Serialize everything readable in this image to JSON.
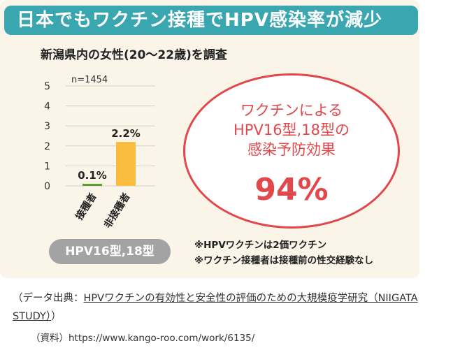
{
  "banner": {
    "title": "日本でもワクチン接種でHPV感染率が減少"
  },
  "subtitle": "新潟県内の女性(20〜22歳)を調査",
  "chart_data": {
    "type": "bar",
    "annotation": "n=1454",
    "categories": [
      "接種者",
      "非接種者"
    ],
    "values": [
      0.1,
      2.2
    ],
    "value_labels": [
      "0.1%",
      "2.2%"
    ],
    "bar_colors": [
      "#5aa02c",
      "#fbbd3f"
    ],
    "yticks": [
      "0",
      "1",
      "2",
      "3",
      "4",
      "5"
    ],
    "ylim": [
      0,
      5
    ],
    "grid": true
  },
  "callout": {
    "text": "ワクチンによる\nHPV16型,18型の\n感染予防効果",
    "percent": "94%",
    "color": "#e2474b"
  },
  "pill": {
    "label": "HPV16型,18型"
  },
  "notes": [
    "※HPVワクチンは2価ワクチン",
    "※ワクチン接種者は接種前の性交経験なし"
  ],
  "source": {
    "prefix": "（データ出典：",
    "link_text": "HPVワクチンの有効性と安全性の評価のための大規模疫学研究（NIIGATA STUDY）",
    "suffix": "）"
  },
  "reference": {
    "label": "（資料）",
    "url": "https://www.kango-roo.com/work/6135/"
  },
  "colors": {
    "banner": "#3aa6b0",
    "card": "#fbf5e9",
    "pill": "#a3a3a3"
  }
}
